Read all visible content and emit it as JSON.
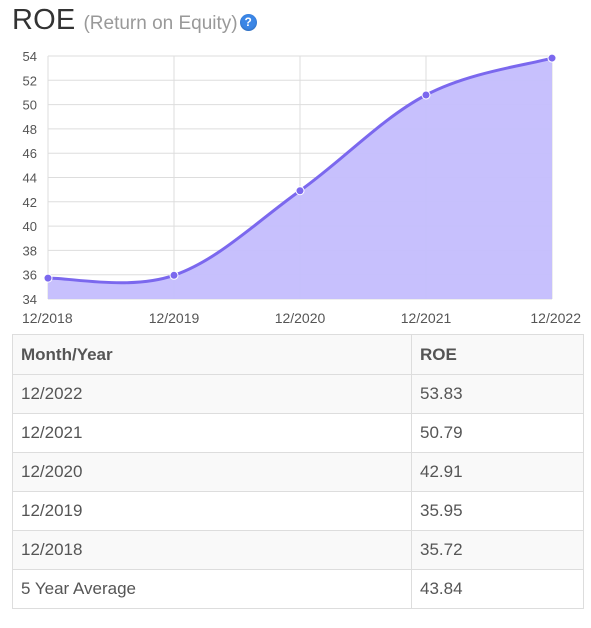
{
  "header": {
    "title": "ROE",
    "subtitle": "(Return on Equity)",
    "help_icon": "?"
  },
  "colors": {
    "line": "#7b68ee",
    "fill": "#c4bdfd",
    "grid": "#dddddd"
  },
  "chart_data": {
    "type": "area",
    "x": [
      "12/2018",
      "12/2019",
      "12/2020",
      "12/2021",
      "12/2022"
    ],
    "series": [
      {
        "values": [
          35.72,
          35.95,
          42.91,
          50.79,
          53.83
        ]
      }
    ],
    "ylim": [
      34,
      54
    ],
    "yticks": [
      34,
      36,
      38,
      40,
      42,
      44,
      46,
      48,
      50,
      52,
      54
    ],
    "grid": true,
    "legend": "none",
    "title": "",
    "xlabel": "",
    "ylabel": ""
  },
  "table": {
    "headers": [
      "Month/Year",
      "ROE"
    ],
    "rows": [
      [
        "12/2022",
        "53.83"
      ],
      [
        "12/2021",
        "50.79"
      ],
      [
        "12/2020",
        "42.91"
      ],
      [
        "12/2019",
        "35.95"
      ],
      [
        "12/2018",
        "35.72"
      ],
      [
        "5 Year Average",
        "43.84"
      ]
    ]
  }
}
